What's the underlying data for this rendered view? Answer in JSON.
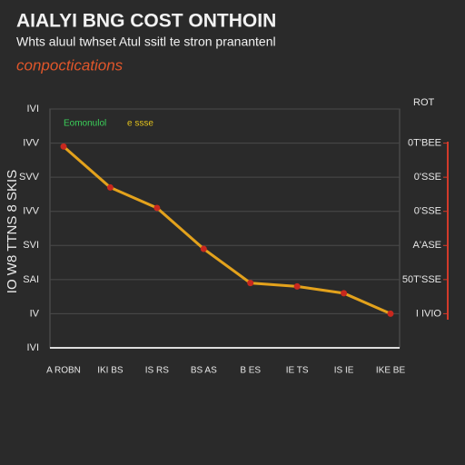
{
  "chart_data": {
    "type": "line",
    "title": "AIALYI BNG COST ONTHOIN",
    "subtitle": "Whts aluul twhset Atul ssitl te stron pranantenl",
    "annotation": "conpoctications",
    "y_label": "IO W8 TTNS 8 SKIS",
    "y2_label": "ROT",
    "categories": [
      "A ROBN",
      "IKI BS",
      "IS RS",
      "BS AS",
      "B ES",
      "IE TS",
      "IS IE",
      "IKE BE"
    ],
    "series": [
      {
        "name": "Eomonulol",
        "color": "#e3a21c",
        "marker_color": "#c8281e",
        "values": [
          5.9,
          4.7,
          4.1,
          2.9,
          1.9,
          1.8,
          1.6,
          1.0
        ]
      }
    ],
    "legend_note": "e ssse",
    "ylim": [
      0,
      7
    ],
    "yticks": [
      {
        "value": 0,
        "label": "IVI"
      },
      {
        "value": 1,
        "label": "IV"
      },
      {
        "value": 2,
        "label": "SAI"
      },
      {
        "value": 3,
        "label": "SVI"
      },
      {
        "value": 4,
        "label": "IVV"
      },
      {
        "value": 5,
        "label": "SVV"
      },
      {
        "value": 6,
        "label": "IVV"
      },
      {
        "value": 7,
        "label": "IVI"
      }
    ],
    "y2lim": [
      -1,
      6
    ],
    "y2ticks": [
      {
        "value": 0,
        "label": "I IVIO"
      },
      {
        "value": 1,
        "label": "50T'SSE"
      },
      {
        "value": 2,
        "label": "A'ASE"
      },
      {
        "value": 3,
        "label": "0'SSE"
      },
      {
        "value": 4,
        "label": "0'SSE"
      },
      {
        "value": 5,
        "label": "0T'BEE"
      }
    ],
    "grid": true
  }
}
